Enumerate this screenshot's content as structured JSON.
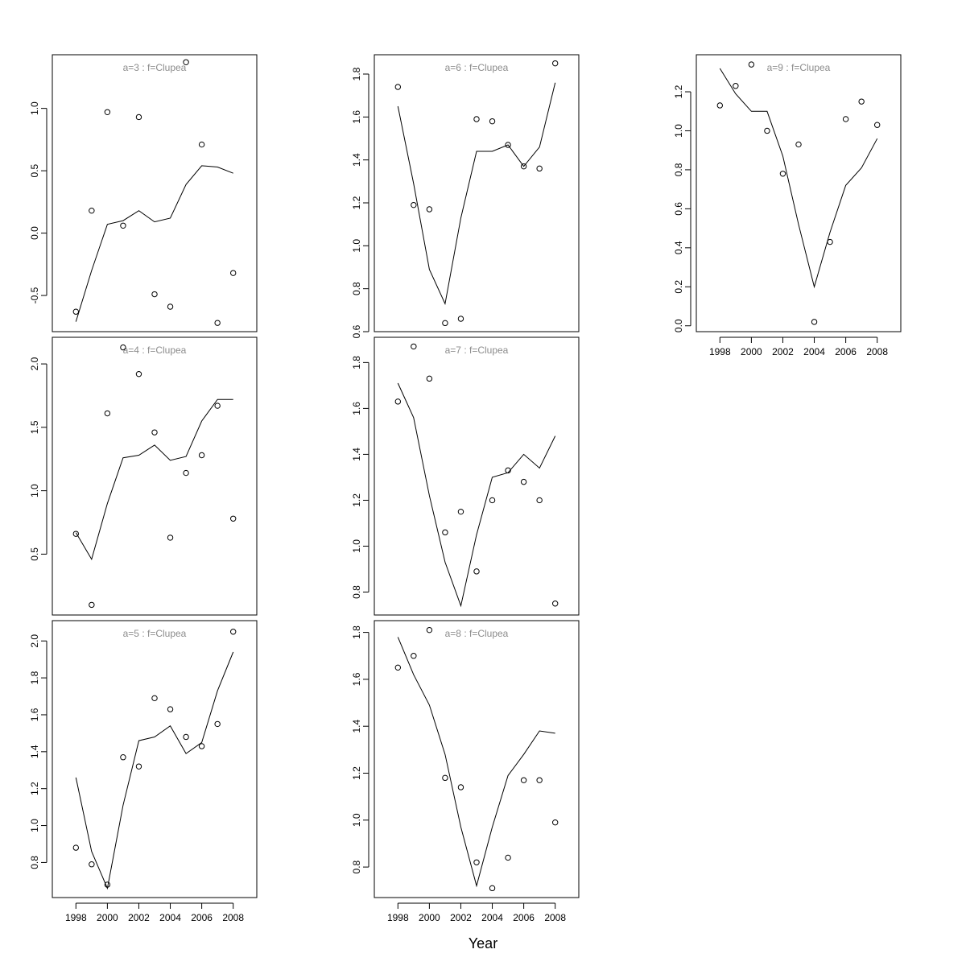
{
  "xlabel": "Year",
  "x_ticks": [
    "1998",
    "2000",
    "2002",
    "2004",
    "2006",
    "2008"
  ],
  "colors": {
    "frame": "#000000",
    "title": "#8c8c8c",
    "line": "#000000",
    "points": "#000000"
  },
  "chart_data": [
    {
      "type": "line",
      "title": "a=3  :  f=Clupea",
      "x": [
        1998,
        1999,
        2000,
        2001,
        2002,
        2003,
        2004,
        2005,
        2006,
        2007,
        2008
      ],
      "series": [
        {
          "style": "points",
          "values": [
            -0.63,
            0.18,
            0.97,
            0.06,
            0.93,
            -0.49,
            -0.59,
            1.37,
            0.71,
            -0.72,
            -0.32
          ]
        },
        {
          "style": "line",
          "values": [
            -0.71,
            -0.3,
            0.07,
            0.1,
            0.18,
            0.09,
            0.12,
            0.39,
            0.54,
            0.53,
            0.48
          ]
        }
      ],
      "yticks": [
        "-0.5",
        "0.0",
        "0.5",
        "1.0"
      ],
      "xlim": [
        1996.5,
        2009.5
      ],
      "ylim": [
        -0.79,
        1.43
      ],
      "show_xaxis": false
    },
    {
      "type": "line",
      "title": "a=4  :  f=Clupea",
      "x": [
        1998,
        1999,
        2000,
        2001,
        2002,
        2003,
        2004,
        2005,
        2006,
        2007,
        2008
      ],
      "series": [
        {
          "style": "points",
          "values": [
            0.66,
            0.1,
            1.61,
            2.13,
            1.92,
            1.46,
            0.63,
            1.14,
            1.28,
            1.67,
            0.78
          ]
        },
        {
          "style": "line",
          "values": [
            0.67,
            0.46,
            0.9,
            1.26,
            1.28,
            1.36,
            1.24,
            1.27,
            1.55,
            1.72,
            1.72
          ]
        }
      ],
      "yticks": [
        "0.5",
        "1.0",
        "1.5",
        "2.0"
      ],
      "xlim": [
        1996.5,
        2009.5
      ],
      "ylim": [
        0.02,
        2.21
      ],
      "show_xaxis": false
    },
    {
      "type": "line",
      "title": "a=5  :  f=Clupea",
      "x": [
        1998,
        1999,
        2000,
        2001,
        2002,
        2003,
        2004,
        2005,
        2006,
        2007,
        2008
      ],
      "series": [
        {
          "style": "points",
          "values": [
            0.88,
            0.79,
            0.68,
            1.37,
            1.32,
            1.69,
            1.63,
            1.48,
            1.43,
            1.55,
            2.05
          ]
        },
        {
          "style": "line",
          "values": [
            1.26,
            0.86,
            0.66,
            1.11,
            1.46,
            1.48,
            1.54,
            1.39,
            1.45,
            1.73,
            1.94
          ]
        }
      ],
      "yticks": [
        "0.8",
        "1.0",
        "1.2",
        "1.4",
        "1.6",
        "1.8",
        "2.0"
      ],
      "xlim": [
        1996.5,
        2009.5
      ],
      "ylim": [
        0.61,
        2.11
      ],
      "show_xaxis": true
    },
    {
      "type": "line",
      "title": "a=6  :  f=Clupea",
      "x": [
        1998,
        1999,
        2000,
        2001,
        2002,
        2003,
        2004,
        2005,
        2006,
        2007,
        2008
      ],
      "series": [
        {
          "style": "points",
          "values": [
            1.74,
            1.19,
            1.17,
            0.64,
            0.66,
            1.59,
            1.58,
            1.47,
            1.37,
            1.36,
            1.85
          ]
        },
        {
          "style": "line",
          "values": [
            1.65,
            1.29,
            0.89,
            0.73,
            1.13,
            1.44,
            1.44,
            1.47,
            1.37,
            1.46,
            1.76
          ]
        }
      ],
      "yticks": [
        "0.6",
        "0.8",
        "1.0",
        "1.2",
        "1.4",
        "1.6",
        "1.8"
      ],
      "xlim": [
        1996.5,
        2009.5
      ],
      "ylim": [
        0.6,
        1.89
      ],
      "show_xaxis": false
    },
    {
      "type": "line",
      "title": "a=7  :  f=Clupea",
      "x": [
        1998,
        1999,
        2000,
        2001,
        2002,
        2003,
        2004,
        2005,
        2006,
        2007,
        2008
      ],
      "series": [
        {
          "style": "points",
          "values": [
            1.63,
            1.87,
            1.73,
            1.06,
            1.15,
            0.89,
            1.2,
            1.33,
            1.28,
            1.2,
            0.75
          ]
        },
        {
          "style": "line",
          "values": [
            1.71,
            1.56,
            1.22,
            0.93,
            0.74,
            1.05,
            1.3,
            1.32,
            1.4,
            1.34,
            1.48
          ]
        }
      ],
      "yticks": [
        "0.8",
        "1.0",
        "1.2",
        "1.4",
        "1.6",
        "1.8"
      ],
      "xlim": [
        1996.5,
        2009.5
      ],
      "ylim": [
        0.7,
        1.91
      ],
      "show_xaxis": false
    },
    {
      "type": "line",
      "title": "a=8  :  f=Clupea",
      "x": [
        1998,
        1999,
        2000,
        2001,
        2002,
        2003,
        2004,
        2005,
        2006,
        2007,
        2008
      ],
      "series": [
        {
          "style": "points",
          "values": [
            1.65,
            1.7,
            1.81,
            1.18,
            1.14,
            0.82,
            0.71,
            0.84,
            1.17,
            1.17,
            0.99
          ]
        },
        {
          "style": "line",
          "values": [
            1.78,
            1.62,
            1.49,
            1.28,
            0.97,
            0.72,
            0.97,
            1.19,
            1.28,
            1.38,
            1.37
          ]
        }
      ],
      "yticks": [
        "0.8",
        "1.0",
        "1.2",
        "1.4",
        "1.6",
        "1.8"
      ],
      "xlim": [
        1996.5,
        2009.5
      ],
      "ylim": [
        0.67,
        1.85
      ],
      "show_xaxis": true
    },
    {
      "type": "line",
      "title": "a=9  :  f=Clupea",
      "x": [
        1998,
        1999,
        2000,
        2001,
        2002,
        2003,
        2004,
        2005,
        2006,
        2007,
        2008
      ],
      "series": [
        {
          "style": "points",
          "values": [
            1.13,
            1.23,
            1.34,
            1.0,
            0.78,
            0.93,
            0.02,
            0.43,
            1.06,
            1.15,
            1.03
          ]
        },
        {
          "style": "line",
          "values": [
            1.32,
            1.19,
            1.1,
            1.1,
            0.87,
            0.52,
            0.2,
            0.48,
            0.72,
            0.81,
            0.96
          ]
        }
      ],
      "yticks": [
        "0.0",
        "0.2",
        "0.4",
        "0.6",
        "0.8",
        "1.0",
        "1.2"
      ],
      "xlim": [
        1996.5,
        2009.5
      ],
      "ylim": [
        -0.03,
        1.39
      ],
      "show_xaxis": true
    }
  ]
}
